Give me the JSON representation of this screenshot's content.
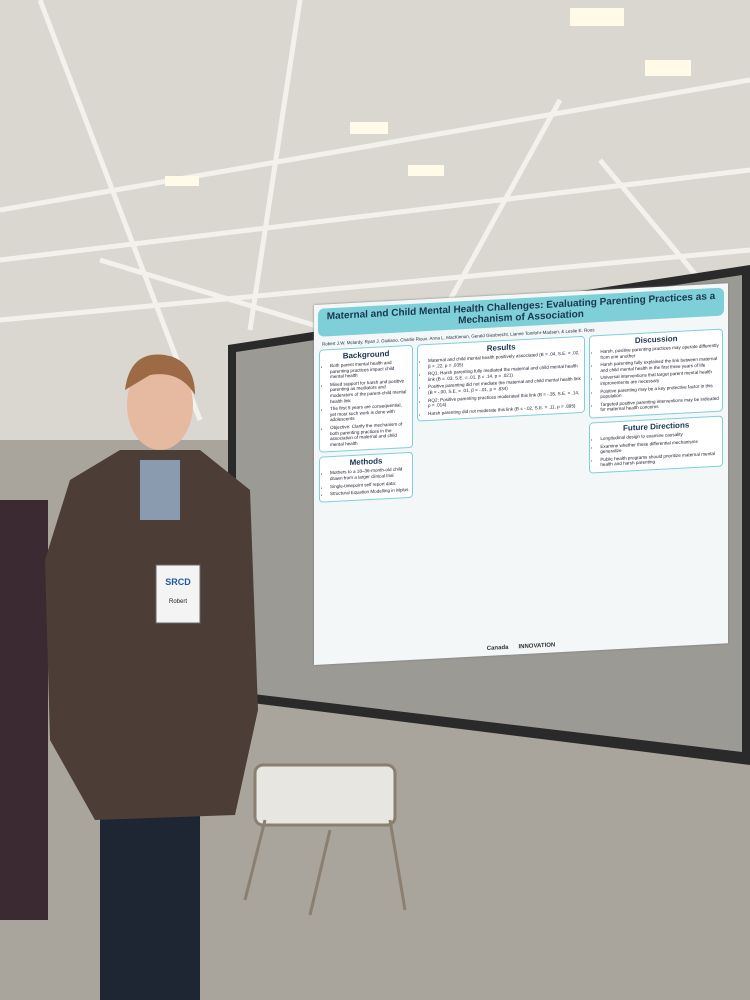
{
  "poster": {
    "title": "Maternal and Child Mental Health Challenges: Evaluating Parenting Practices as a Mechanism of Association",
    "authors": "Robert J.W. Mclardy, Ryan J. Giuliano, Charlie Rioux, Anna L. MacKinnon, Gerald Giesbrecht, Lianne Tomfohr-Madsen, & Leslie E. Roos",
    "background": {
      "heading": "Background",
      "items": [
        "Both parent mental health and parenting practices impact child mental health",
        "Mixed support for harsh and positive parenting as mediators and moderators of the parent-child mental health link",
        "The first 5 years are consequential, yet most such work is done with adolescents",
        "Objective: Clarify the mechanism of both parenting practices in the association of maternal and child mental health"
      ]
    },
    "methods": {
      "heading": "Methods",
      "items": [
        "Mothers to a 18–36-month-old child drawn from a larger clinical trial",
        "Single-timepoint self report data:",
        "Structural Equation Modelling in Mplus"
      ]
    },
    "results": {
      "heading": "Results",
      "items": [
        "Maternal and child mental health positively associated (B = .04, S.E. = .02, β = .22, p = .035)",
        "RQ1: Harsh parenting fully mediated the maternal and child mental health link (B = .03, S.E. = .01, β = .14, p = .021)",
        "Positive parenting did not mediate the maternal and child mental health link (B = -.00, S.E. = .01, β = -.01, p = .834)",
        "RQ2: Positive parenting practices moderated this link (B = -.35, S.E. = .14, p = .014)",
        "Harsh parenting did not moderate this link (B = -.02, S.E. = .11, p = .895)"
      ]
    },
    "discussion": {
      "heading": "Discussion",
      "items": [
        "Harsh, positive parenting practices may operate differently from one another",
        "Harsh parenting fully explained the link between maternal and child mental health in the first three years of life",
        "Universal interventions that target parent mental health improvements are necessary",
        "Positive parenting may be a key protective factor in this population",
        "Targeted positive parenting interventions may be indicated for maternal health concerns"
      ]
    },
    "future": {
      "heading": "Future Directions",
      "items": [
        "Longitudinal design to examine causality",
        "Examine whether these differential mechanisms generalize",
        "Public health programs should prioritize maternal mental health and harsh parenting"
      ]
    },
    "sponsors": [
      "Canada",
      "INNOVATION"
    ]
  },
  "badge": {
    "org": "SRCD",
    "name": "Robert"
  }
}
